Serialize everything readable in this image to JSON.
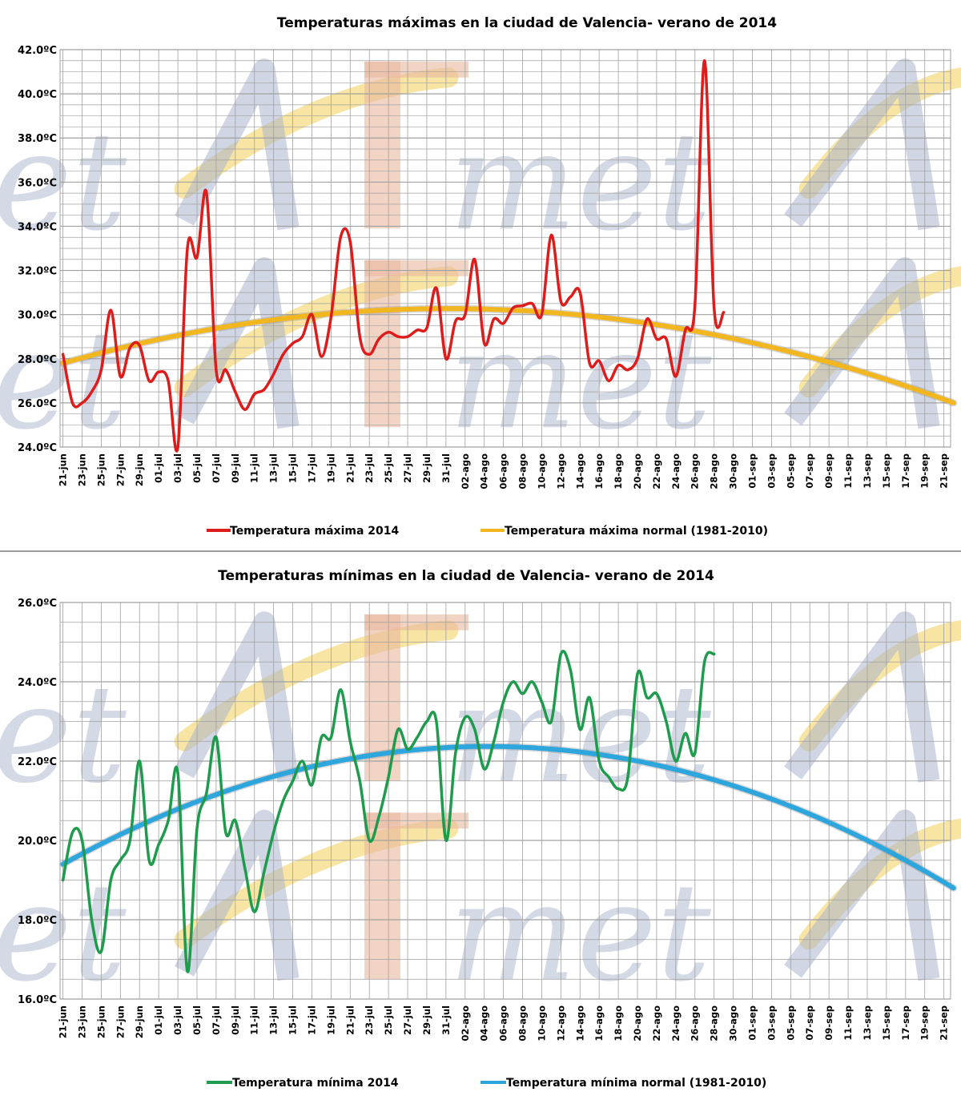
{
  "colors": {
    "max_2014": "#dd1c1c",
    "max_normal": "#f2b61f",
    "min_2014": "#1e9b4d",
    "min_normal": "#2ca6dd",
    "grid": "#a0a0a0",
    "watermark_gray": "#a9b4cc",
    "watermark_yellow": "#f6dc86",
    "watermark_red": "#eab79e"
  },
  "watermark": {
    "text": "AEmet"
  },
  "chart_data": [
    {
      "type": "line",
      "title": "Temperaturas  máximas  en la ciudad de Valencia-  verano de 2014",
      "ylim": [
        24,
        42
      ],
      "y_ticks": [
        "24.0ºC",
        "26.0ºC",
        "28.0ºC",
        "30.0ºC",
        "32.0ºC",
        "34.0ºC",
        "36.0ºC",
        "38.0ºC",
        "40.0ºC",
        "42.0ºC"
      ],
      "y_tick_values": [
        24,
        26,
        28,
        30,
        32,
        34,
        36,
        38,
        40,
        42
      ],
      "x_ticks": [
        "21-jun",
        "23-jun",
        "25-jun",
        "27-jun",
        "29-jun",
        "01-jul",
        "03-jul",
        "05-jul",
        "07-jul",
        "09-jul",
        "11-jul",
        "13-jul",
        "15-jul",
        "17-jul",
        "19-jul",
        "21-jul",
        "23-jul",
        "25-jul",
        "27-jul",
        "29-jul",
        "31-jul",
        "02-ago",
        "04-ago",
        "06-ago",
        "08-ago",
        "10-ago",
        "12-ago",
        "14-ago",
        "16-ago",
        "18-ago",
        "20-ago",
        "22-ago",
        "24-ago",
        "26-ago",
        "28-ago",
        "30-ago",
        "01-sep",
        "03-sep",
        "05-sep",
        "07-sep",
        "09-sep",
        "11-sep",
        "13-sep",
        "15-sep",
        "17-sep",
        "19-sep",
        "21-sep"
      ],
      "grid": true,
      "legend_position": "bottom",
      "series": [
        {
          "name": "Temperatura máxima 2014",
          "start": "21-jun",
          "values": [
            28.2,
            26.0,
            26.0,
            26.5,
            27.5,
            30.2,
            27.2,
            28.5,
            28.6,
            27.0,
            27.4,
            27.0,
            24.0,
            33.0,
            32.6,
            35.5,
            27.5,
            27.5,
            26.5,
            25.7,
            26.4,
            26.6,
            27.3,
            28.2,
            28.7,
            29.0,
            30.0,
            28.1,
            29.9,
            33.5,
            33.3,
            29.0,
            28.2,
            28.9,
            29.2,
            29.0,
            29.0,
            29.3,
            29.4,
            31.2,
            28.0,
            29.7,
            30.0,
            32.5,
            28.7,
            29.8,
            29.6,
            30.3,
            30.4,
            30.5,
            30.0,
            33.6,
            30.6,
            30.8,
            31.0,
            27.8,
            27.9,
            27.0,
            27.7,
            27.5,
            28.0,
            29.8,
            28.9,
            28.9,
            27.2,
            29.3,
            30.4,
            41.5,
            30.3,
            30.1
          ]
        },
        {
          "name": "Temperatura máxima normal (1981-2010)",
          "x": [
            "21-jun",
            "07-ago",
            "22-sep"
          ],
          "values": [
            27.8,
            30.2,
            26.0
          ]
        }
      ]
    },
    {
      "type": "line",
      "title": "Temperaturas  mínimas  en la ciudad de Valencia-  verano de 2014",
      "ylim": [
        16,
        26
      ],
      "y_ticks": [
        "16.0ºC",
        "18.0ºC",
        "20.0ºC",
        "22.0ºC",
        "24.0ºC",
        "26.0ºC"
      ],
      "y_tick_values": [
        16,
        18,
        20,
        22,
        24,
        26
      ],
      "x_ticks": [
        "21-jun",
        "23-jun",
        "25-jun",
        "27-jun",
        "29-jun",
        "01-jul",
        "03-jul",
        "05-jul",
        "07-jul",
        "09-jul",
        "11-jul",
        "13-jul",
        "15-jul",
        "17-jul",
        "19-jul",
        "21-jul",
        "23-jul",
        "25-jul",
        "27-jul",
        "29-jul",
        "31-jul",
        "02-ago",
        "04-ago",
        "06-ago",
        "08-ago",
        "10-ago",
        "12-ago",
        "14-ago",
        "16-ago",
        "18-ago",
        "20-ago",
        "22-ago",
        "24-ago",
        "26-ago",
        "28-ago",
        "30-ago",
        "01-sep",
        "03-sep",
        "05-sep",
        "07-sep",
        "09-sep",
        "11-sep",
        "13-sep",
        "15-sep",
        "17-sep",
        "19-sep",
        "21-sep"
      ],
      "grid": true,
      "legend_position": "bottom",
      "series": [
        {
          "name": "Temperatura mínima 2014",
          "start": "21-jun",
          "values": [
            19.0,
            20.2,
            20.0,
            18.0,
            17.2,
            19.0,
            19.5,
            20.0,
            22.0,
            19.5,
            19.9,
            20.5,
            21.7,
            16.7,
            20.3,
            21.2,
            22.6,
            20.2,
            20.5,
            19.3,
            18.2,
            19.2,
            20.2,
            21.0,
            21.5,
            22.0,
            21.4,
            22.6,
            22.6,
            23.8,
            22.5,
            21.5,
            20.0,
            20.6,
            21.6,
            22.8,
            22.3,
            22.6,
            23.0,
            23.0,
            20.0,
            22.2,
            23.1,
            22.8,
            21.8,
            22.5,
            23.5,
            24.0,
            23.7,
            24.0,
            23.5,
            23.0,
            24.7,
            24.3,
            22.8,
            23.6,
            22.0,
            21.6,
            21.3,
            21.6,
            24.2,
            23.6,
            23.7,
            23.0,
            22.0,
            22.7,
            22.2,
            24.5,
            24.7
          ]
        },
        {
          "name": "Temperatura mínima normal (1981-2010)",
          "x": [
            "21-jun",
            "08-ago",
            "22-sep"
          ],
          "values": [
            19.4,
            22.35,
            18.8
          ]
        }
      ]
    }
  ]
}
